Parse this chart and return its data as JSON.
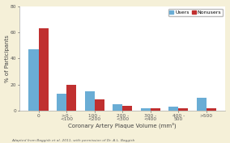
{
  "categories": [
    "0",
    ">0 - <100",
    "100 - <200",
    "200 - <300",
    "300 - <400",
    "400 - 500",
    ">500"
  ],
  "xtick_labels": [
    "0",
    ">0 -\n<100",
    "100 -\n<200",
    "200 -\n<300",
    "300 -\n<400",
    "400 -\n500",
    ">500"
  ],
  "users": [
    47,
    13,
    15,
    5,
    2,
    3,
    10
  ],
  "nonusers": [
    63,
    20,
    9,
    4,
    2,
    2,
    2
  ],
  "bar_color_users": "#6aadd5",
  "bar_color_nonusers": "#c03030",
  "xlabel": "Coronary Artery Plaque Volume (mm³)",
  "ylabel": "% of Participants",
  "ylim": [
    0,
    80
  ],
  "yticks": [
    0,
    20,
    40,
    60,
    80
  ],
  "legend_labels": [
    "Users",
    "Nonusers"
  ],
  "footnote": "Adapted from Baggish et al. 2011, with permission of Dr. A.L. Baggish",
  "background_color": "#f5f0d8",
  "plot_bg_color": "#ffffff",
  "axis_fontsize": 5.0,
  "tick_fontsize": 4.2,
  "legend_fontsize": 4.5,
  "footnote_fontsize": 3.2
}
